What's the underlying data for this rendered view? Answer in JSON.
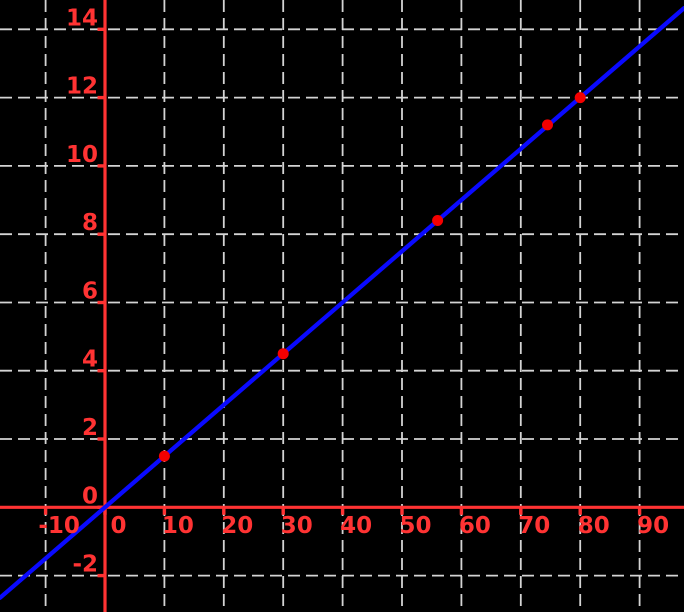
{
  "chart_data": {
    "type": "line",
    "title": "",
    "xlabel": "",
    "ylabel": "",
    "x_ticks": [
      -10,
      0,
      10,
      20,
      30,
      40,
      50,
      60,
      70,
      80,
      90
    ],
    "y_ticks": [
      -2,
      0,
      2,
      4,
      6,
      8,
      10,
      12,
      14
    ],
    "xlim": [
      -17.7,
      97.5
    ],
    "ylim": [
      -3.1,
      14.9
    ],
    "grid": "dashed-white-both-axes",
    "legend": "none",
    "series": [
      {
        "name": "trend-line",
        "kind": "line",
        "slope": 0.15,
        "intercept": 0,
        "equation": "y = 0.15x"
      },
      {
        "name": "data-points",
        "kind": "scatter",
        "points": [
          [
            10,
            1.5
          ],
          [
            30,
            4.5
          ],
          [
            56,
            8.4
          ],
          [
            74.5,
            11.2
          ],
          [
            80,
            12
          ]
        ]
      }
    ],
    "colors": {
      "background": "#000000",
      "axis": "#ff3333",
      "grid": "#d4d4d4",
      "line": "#0a0aff",
      "point": "#f40000"
    }
  }
}
